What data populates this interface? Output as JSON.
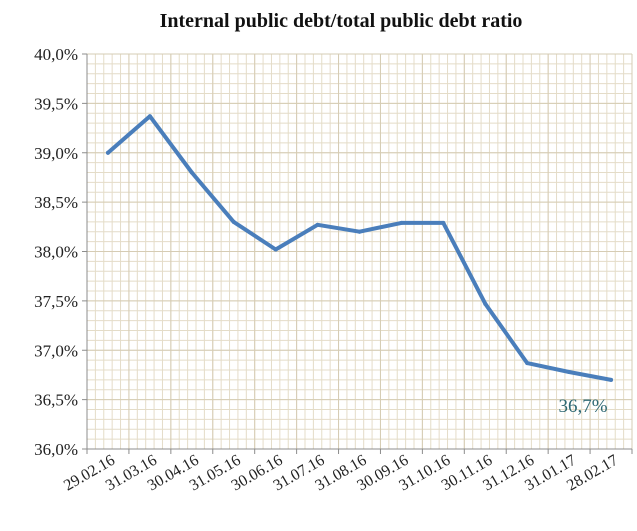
{
  "chart_data": {
    "type": "line",
    "title": "Internal public debt/total public debt ratio",
    "xlabel": "",
    "ylabel": "",
    "categories": [
      "29.02.16",
      "31.03.16",
      "30.04.16",
      "31.05.16",
      "30.06.16",
      "31.07.16",
      "31.08.16",
      "30.09.16",
      "31.10.16",
      "30.11.16",
      "31.12.16",
      "31.01.17",
      "28.02.17"
    ],
    "series": [
      {
        "values": [
          39.0,
          39.37,
          38.8,
          38.3,
          38.02,
          38.27,
          38.2,
          38.29,
          38.29,
          37.47,
          36.87,
          36.78,
          36.7
        ]
      }
    ],
    "y_ticks": [
      {
        "value": 36.0,
        "label": "36,0%"
      },
      {
        "value": 36.5,
        "label": "36,5%"
      },
      {
        "value": 37.0,
        "label": "37,0%"
      },
      {
        "value": 37.5,
        "label": "37,5%"
      },
      {
        "value": 38.0,
        "label": "38,0%"
      },
      {
        "value": 38.5,
        "label": "38,5%"
      },
      {
        "value": 39.0,
        "label": "39,0%"
      },
      {
        "value": 39.5,
        "label": "39,5%"
      },
      {
        "value": 40.0,
        "label": "40,0%"
      }
    ],
    "ylim": [
      36.0,
      40.0
    ],
    "grid": true,
    "legend": "none",
    "data_labels": [
      {
        "index": 12,
        "text": "36,7%"
      }
    ],
    "colors": {
      "line": "#4a7ebb",
      "grid": "#e4dcc8",
      "axis": "#8c8c8c",
      "data_label": "#2e6873"
    }
  }
}
